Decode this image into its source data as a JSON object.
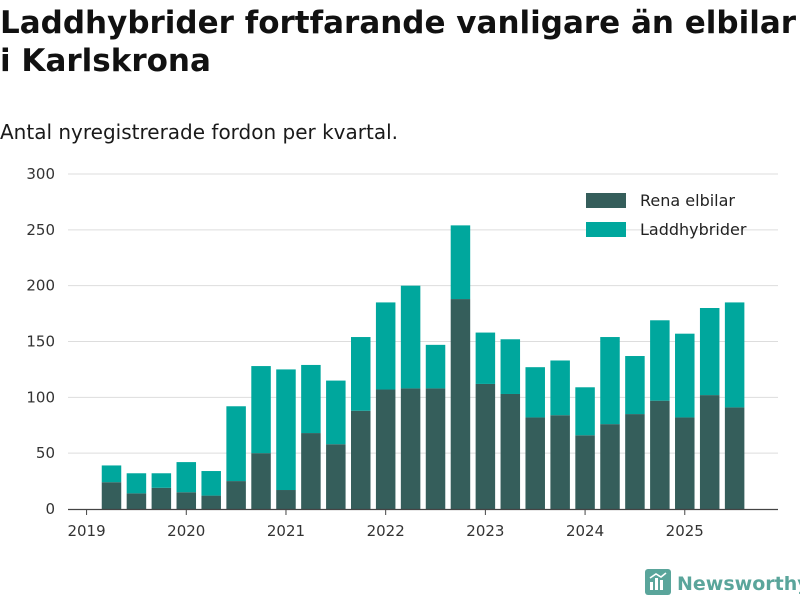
{
  "title": "Laddhybrider fortfarande vanligare än elbilar i Karlskrona",
  "subtitle": "Antal nyregistrerade fordon per kvartal.",
  "brand": {
    "name": "Newsworthy",
    "icon": "newsworthy-logo-icon"
  },
  "colors": {
    "rena_elbilar": "#355e5b",
    "laddhybrider": "#00a79d",
    "grid": "#dddddd",
    "axis": "#444444",
    "brand": "#5aa59b"
  },
  "chart_data": {
    "type": "bar",
    "stacked": true,
    "title": "Laddhybrider fortfarande vanligare än elbilar i Karlskrona",
    "subtitle": "Antal nyregistrerade fordon per kvartal.",
    "xlabel": "",
    "ylabel": "",
    "ylim": [
      0,
      300
    ],
    "yticks": [
      "0",
      "50",
      "100",
      "150",
      "200",
      "250",
      "300"
    ],
    "x_ticks": [
      "2019",
      "2020",
      "2021",
      "2022",
      "2023",
      "2024",
      "2025"
    ],
    "categories": [
      "2019 Q2",
      "2019 Q3",
      "2019 Q4",
      "2020 Q1",
      "2020 Q2",
      "2020 Q3",
      "2020 Q4",
      "2021 Q1",
      "2021 Q2",
      "2021 Q3",
      "2021 Q4",
      "2022 Q1",
      "2022 Q2",
      "2022 Q3",
      "2022 Q4",
      "2023 Q1",
      "2023 Q2",
      "2023 Q3",
      "2023 Q4",
      "2024 Q1",
      "2024 Q2",
      "2024 Q3",
      "2024 Q4",
      "2025 Q1",
      "2025 Q2",
      "2025 Q3"
    ],
    "series": [
      {
        "name": "Rena elbilar",
        "values": [
          24,
          14,
          19,
          15,
          12,
          25,
          50,
          17,
          68,
          58,
          88,
          107,
          108,
          108,
          188,
          112,
          103,
          82,
          84,
          66,
          76,
          85,
          97,
          82,
          102,
          91
        ]
      },
      {
        "name": "Laddhybrider",
        "values": [
          15,
          18,
          13,
          27,
          22,
          67,
          78,
          108,
          61,
          57,
          66,
          78,
          92,
          39,
          66,
          46,
          49,
          45,
          49,
          43,
          78,
          52,
          72,
          75,
          78,
          94
        ]
      }
    ],
    "legend_position": "top-right",
    "grid": true
  }
}
